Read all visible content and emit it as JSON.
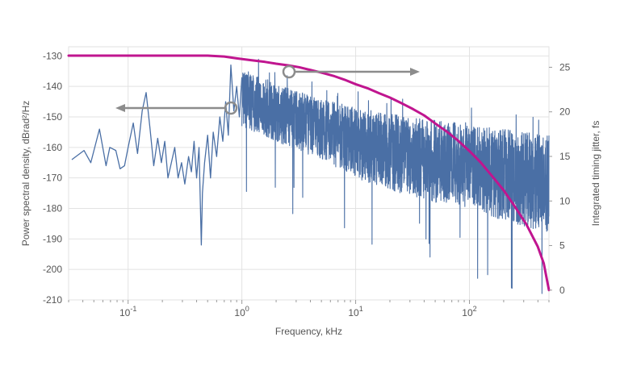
{
  "chart_data": {
    "type": "line",
    "xscale": "log",
    "xlim": [
      0.03,
      500
    ],
    "xlabel": "Frequency, kHz",
    "xticks": [
      {
        "value": 0.1,
        "base": "10",
        "exp": "-1"
      },
      {
        "value": 1,
        "base": "10",
        "exp": "0"
      },
      {
        "value": 10,
        "base": "10",
        "exp": "1"
      },
      {
        "value": 100,
        "base": "10",
        "exp": "2"
      }
    ],
    "ylabel_left": "Power spectral density, dBrad²/Hz",
    "ylim_left": [
      -210,
      -127
    ],
    "yticks_left": [
      -130,
      -140,
      -150,
      -160,
      -170,
      -180,
      -190,
      -200,
      -210
    ],
    "ylabel_right": "Integrated timing jitter, fs",
    "ylim_right": [
      -1.1,
      27.3
    ],
    "yticks_right": [
      0,
      5,
      10,
      15,
      20,
      25
    ],
    "grid": true,
    "series": [
      {
        "axis": "left",
        "color": "#4a6fa5",
        "x": [
          0.032,
          0.041,
          0.047,
          0.056,
          0.064,
          0.069,
          0.078,
          0.085,
          0.093,
          0.1,
          0.111,
          0.121,
          0.133,
          0.144,
          0.156,
          0.168,
          0.182,
          0.196,
          0.21,
          0.224,
          0.24,
          0.257,
          0.275,
          0.295,
          0.315,
          0.34,
          0.36,
          0.38,
          0.4,
          0.42,
          0.44,
          0.45,
          0.47,
          0.5,
          0.53,
          0.56,
          0.6,
          0.64,
          0.68,
          0.72,
          0.76,
          0.8,
          0.85,
          0.9,
          0.95,
          1.0
        ],
        "values": [
          -164,
          -161,
          -165,
          -154,
          -166,
          -160,
          -161,
          -167,
          -166,
          -160,
          -152,
          -162,
          -148,
          -142,
          -154,
          -166,
          -157,
          -165,
          -158,
          -170,
          -165,
          -160,
          -170,
          -165,
          -172,
          -163,
          -168,
          -158,
          -170,
          -160,
          -192,
          -175,
          -165,
          -156,
          -170,
          -155,
          -163,
          -150,
          -158,
          -145,
          -156,
          -133,
          -148,
          -140,
          -150,
          -137
        ]
      },
      {
        "axis": "left",
        "color": "#4a6fa5",
        "band": true,
        "x": [
          1,
          2,
          5,
          10,
          20,
          50,
          100,
          200,
          500
        ],
        "upper": [
          -134,
          -139,
          -144,
          -147,
          -149,
          -151,
          -152,
          -154,
          -156
        ],
        "lower": [
          -153,
          -158,
          -164,
          -170,
          -174,
          -178,
          -180,
          -184,
          -188
        ]
      },
      {
        "axis": "right",
        "color": "#c0158f",
        "x": [
          0.03,
          0.5,
          0.7,
          0.9,
          1.2,
          1.6,
          2.0,
          2.6,
          3.2,
          4,
          5,
          6.5,
          8,
          10,
          13,
          16,
          20,
          25,
          32,
          40,
          50,
          63,
          79,
          100,
          126,
          158,
          200,
          250,
          316,
          398,
          450,
          500
        ],
        "values": [
          26.3,
          26.3,
          26.2,
          26.0,
          25.8,
          25.6,
          25.4,
          25.2,
          25.0,
          24.7,
          24.4,
          24.0,
          23.6,
          23.1,
          22.6,
          22.1,
          21.6,
          21.0,
          20.3,
          19.6,
          18.7,
          17.8,
          16.8,
          15.6,
          14.3,
          12.8,
          11.2,
          9.4,
          7.4,
          4.9,
          3.0,
          0.0
        ]
      }
    ],
    "annotations": [
      {
        "type": "arrow",
        "direction": "left",
        "series": "Power spectral density"
      },
      {
        "type": "arrow",
        "direction": "right",
        "series": "Integrated timing jitter"
      }
    ]
  }
}
